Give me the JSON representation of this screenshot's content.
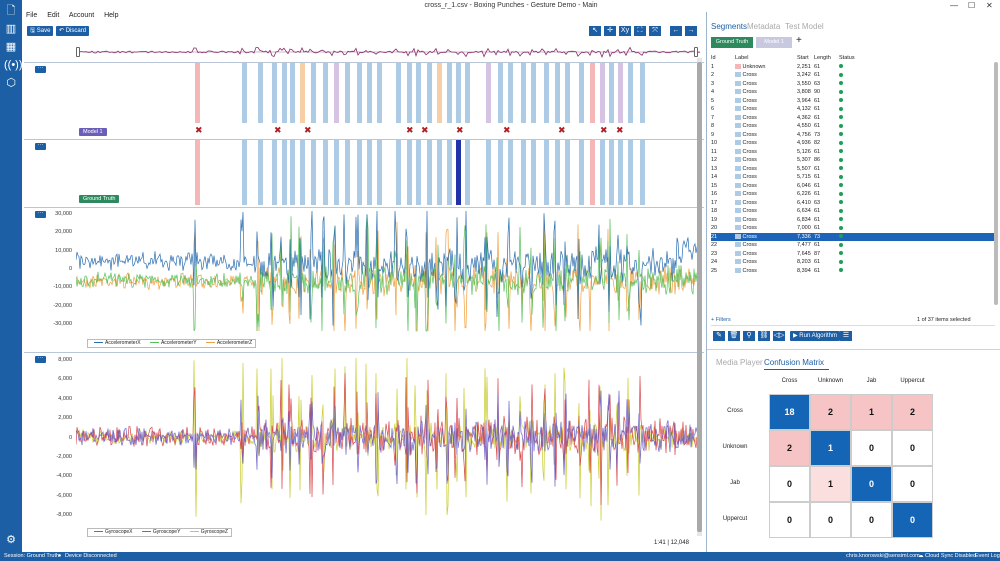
{
  "window": {
    "title": "cross_r_1.csv - Boxing Punches - Gesture Demo - Main"
  },
  "menu": [
    "File",
    "Edit",
    "Account",
    "Help"
  ],
  "toolbar": {
    "save": "Save",
    "discard": "Discard",
    "tools": [
      "↖",
      "✛",
      "Xy",
      "⛶",
      "⤧"
    ],
    "nav_prev": "←",
    "nav_next": "→"
  },
  "lanes": {
    "model_label": "Model 1",
    "truth_label": "Ground Truth",
    "expand": "···",
    "accel": {
      "yticks": [
        "30,000",
        "20,000",
        "10,000",
        "0",
        "-10,000",
        "-20,000",
        "-30,000"
      ],
      "legend": [
        "AccelerometerX",
        "AccelerometerY",
        "AccelerometerZ"
      ]
    },
    "gyro": {
      "yticks": [
        "8,000",
        "6,000",
        "4,000",
        "2,000",
        "0",
        "-2,000",
        "-4,000",
        "-6,000",
        "-8,000"
      ],
      "legend": [
        "GyroscopeX",
        "GyroscopeY",
        "GyroscopeZ"
      ]
    },
    "position": "1:41  |  12,048"
  },
  "colors": {
    "accent": "#1d5fa5",
    "x": "#2c6fb0",
    "y": "#57c05c",
    "z": "#f0a040",
    "gx": "#6c63c9",
    "gy": "#d8474d",
    "gz": "#c8cc2c",
    "cross": "#aecbe6",
    "unknown": "#f4b6b6",
    "jab": "#f6cfa6",
    "upper": "#d6c3e4"
  },
  "segments_panel": {
    "tabs": [
      "Segments",
      "Metadata",
      "Test Model"
    ],
    "chips": [
      "Ground Truth",
      "Model 1"
    ],
    "add": "+",
    "columns": [
      "Id",
      "Label",
      "Start",
      "Length",
      "Status"
    ],
    "rows": [
      [
        "1",
        "Unknown",
        "2,251",
        "61"
      ],
      [
        "2",
        "Cross",
        "3,242",
        "61"
      ],
      [
        "3",
        "Cross",
        "3,550",
        "63"
      ],
      [
        "4",
        "Cross",
        "3,808",
        "90"
      ],
      [
        "5",
        "Cross",
        "3,964",
        "61"
      ],
      [
        "6",
        "Cross",
        "4,132",
        "61"
      ],
      [
        "7",
        "Cross",
        "4,362",
        "61"
      ],
      [
        "8",
        "Cross",
        "4,550",
        "61"
      ],
      [
        "9",
        "Cross",
        "4,756",
        "73"
      ],
      [
        "10",
        "Cross",
        "4,936",
        "82"
      ],
      [
        "11",
        "Cross",
        "5,126",
        "61"
      ],
      [
        "12",
        "Cross",
        "5,307",
        "86"
      ],
      [
        "13",
        "Cross",
        "5,507",
        "61"
      ],
      [
        "14",
        "Cross",
        "5,715",
        "61"
      ],
      [
        "15",
        "Cross",
        "6,046",
        "61"
      ],
      [
        "16",
        "Cross",
        "6,226",
        "61"
      ],
      [
        "17",
        "Cross",
        "6,410",
        "63"
      ],
      [
        "18",
        "Cross",
        "6,634",
        "61"
      ],
      [
        "19",
        "Cross",
        "6,834",
        "61"
      ],
      [
        "20",
        "Cross",
        "7,000",
        "61"
      ],
      [
        "21",
        "Cross",
        "7,336",
        "73"
      ],
      [
        "22",
        "Cross",
        "7,477",
        "61"
      ],
      [
        "23",
        "Cross",
        "7,645",
        "87"
      ],
      [
        "24",
        "Cross",
        "8,203",
        "61"
      ],
      [
        "25",
        "Cross",
        "8,394",
        "61"
      ]
    ],
    "filters": "+ Filters",
    "selection": "1 of 37 items selected",
    "run": "Run Algorithm"
  },
  "bottom_panel": {
    "tabs": [
      "Media Player",
      "Confusion Matrix"
    ],
    "labels": [
      "Cross",
      "Unknown",
      "Jab",
      "Uppercut"
    ],
    "matrix": [
      [
        "18",
        "2",
        "1",
        "2"
      ],
      [
        "2",
        "1",
        "0",
        "0"
      ],
      [
        "0",
        "1",
        "0",
        "0"
      ],
      [
        "0",
        "0",
        "0",
        "0"
      ]
    ]
  },
  "status": {
    "session": "Session: Ground Truth",
    "device": "Device Disconnected",
    "user": "chris.knorowski@sensiml.com",
    "sync": "Cloud Sync Disabled",
    "log": "Event Log"
  }
}
